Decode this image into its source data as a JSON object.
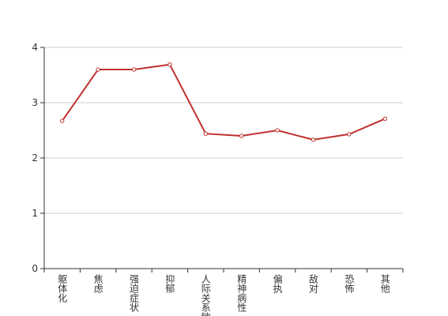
{
  "chart_data": {
    "type": "line",
    "categories": [
      "躯体化",
      "焦虑",
      "强迫症状",
      "抑郁",
      "人际关系敏感",
      "精神病性",
      "偏执",
      "敌对",
      "恐怖",
      "其他"
    ],
    "series": [
      {
        "color": "#c0312f",
        "values": [
          2.67,
          3.6,
          3.6,
          3.69,
          2.44,
          2.4,
          2.5,
          2.33,
          2.43,
          2.71
        ]
      }
    ],
    "ylim": [
      0,
      4
    ],
    "yticks": [
      0,
      1,
      2,
      3,
      4
    ],
    "grid": true
  }
}
